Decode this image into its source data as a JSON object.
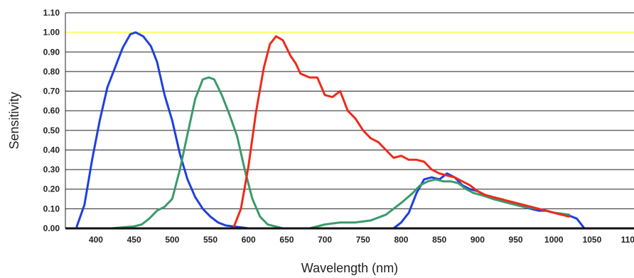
{
  "chart_data": {
    "type": "line",
    "title": "",
    "xlabel": "Wavelength (nm)",
    "ylabel": "Sensitivity",
    "xlim": [
      360,
      1105
    ],
    "ylim": [
      0,
      1.1
    ],
    "x_ticks": [
      "400",
      "450",
      "500",
      "550",
      "600",
      "650",
      "700",
      "750",
      "800",
      "850",
      "900",
      "950",
      "1000",
      "1050",
      "1100"
    ],
    "y_ticks": [
      "0.00",
      "0.10",
      "0.20",
      "0.30",
      "0.40",
      "0.50",
      "0.60",
      "0.70",
      "0.80",
      "0.90",
      "1.00",
      "1.10"
    ],
    "grid": true,
    "reference_line": {
      "y": 1.0,
      "color": "#ffff66"
    },
    "series": [
      {
        "color": "#1f3fe0",
        "points": [
          [
            375,
            0.01
          ],
          [
            385,
            0.12
          ],
          [
            395,
            0.35
          ],
          [
            405,
            0.55
          ],
          [
            415,
            0.72
          ],
          [
            425,
            0.82
          ],
          [
            435,
            0.92
          ],
          [
            445,
            0.99
          ],
          [
            452,
            1.0
          ],
          [
            462,
            0.98
          ],
          [
            472,
            0.93
          ],
          [
            480,
            0.85
          ],
          [
            490,
            0.68
          ],
          [
            500,
            0.55
          ],
          [
            510,
            0.38
          ],
          [
            520,
            0.25
          ],
          [
            530,
            0.16
          ],
          [
            540,
            0.1
          ],
          [
            550,
            0.06
          ],
          [
            560,
            0.03
          ],
          [
            570,
            0.015
          ],
          [
            580,
            0.01
          ],
          [
            590,
            0.005
          ],
          [
            600,
            0.0
          ],
          [
            700,
            0.0
          ],
          [
            790,
            0.0
          ],
          [
            800,
            0.03
          ],
          [
            810,
            0.08
          ],
          [
            820,
            0.18
          ],
          [
            830,
            0.25
          ],
          [
            840,
            0.26
          ],
          [
            850,
            0.25
          ],
          [
            860,
            0.28
          ],
          [
            870,
            0.26
          ],
          [
            880,
            0.22
          ],
          [
            890,
            0.2
          ],
          [
            900,
            0.19
          ],
          [
            910,
            0.17
          ],
          [
            920,
            0.16
          ],
          [
            930,
            0.14
          ],
          [
            940,
            0.13
          ],
          [
            950,
            0.12
          ],
          [
            960,
            0.11
          ],
          [
            970,
            0.1
          ],
          [
            980,
            0.09
          ],
          [
            990,
            0.09
          ],
          [
            1000,
            0.08
          ],
          [
            1010,
            0.07
          ],
          [
            1020,
            0.065
          ],
          [
            1030,
            0.05
          ],
          [
            1040,
            0.0
          ]
        ]
      },
      {
        "color": "#3a9a6a",
        "points": [
          [
            375,
            0.0
          ],
          [
            420,
            0.0
          ],
          [
            450,
            0.01
          ],
          [
            460,
            0.02
          ],
          [
            470,
            0.05
          ],
          [
            480,
            0.09
          ],
          [
            490,
            0.11
          ],
          [
            500,
            0.15
          ],
          [
            510,
            0.3
          ],
          [
            520,
            0.48
          ],
          [
            530,
            0.66
          ],
          [
            540,
            0.76
          ],
          [
            548,
            0.77
          ],
          [
            555,
            0.76
          ],
          [
            565,
            0.68
          ],
          [
            575,
            0.58
          ],
          [
            585,
            0.47
          ],
          [
            595,
            0.3
          ],
          [
            605,
            0.15
          ],
          [
            615,
            0.06
          ],
          [
            625,
            0.02
          ],
          [
            635,
            0.01
          ],
          [
            645,
            0.0
          ],
          [
            680,
            0.0
          ],
          [
            700,
            0.02
          ],
          [
            720,
            0.03
          ],
          [
            740,
            0.03
          ],
          [
            760,
            0.04
          ],
          [
            780,
            0.07
          ],
          [
            800,
            0.13
          ],
          [
            815,
            0.18
          ],
          [
            825,
            0.22
          ],
          [
            835,
            0.24
          ],
          [
            845,
            0.25
          ],
          [
            855,
            0.24
          ],
          [
            865,
            0.24
          ],
          [
            875,
            0.23
          ],
          [
            885,
            0.2
          ],
          [
            895,
            0.18
          ],
          [
            905,
            0.17
          ],
          [
            920,
            0.15
          ],
          [
            940,
            0.13
          ],
          [
            960,
            0.11
          ],
          [
            980,
            0.1
          ],
          [
            1000,
            0.08
          ],
          [
            1020,
            0.07
          ]
        ]
      },
      {
        "color": "#ee2a1a",
        "points": [
          [
            375,
            0.0
          ],
          [
            580,
            0.0
          ],
          [
            590,
            0.1
          ],
          [
            600,
            0.32
          ],
          [
            610,
            0.6
          ],
          [
            620,
            0.82
          ],
          [
            628,
            0.94
          ],
          [
            636,
            0.98
          ],
          [
            645,
            0.96
          ],
          [
            655,
            0.88
          ],
          [
            662,
            0.84
          ],
          [
            668,
            0.79
          ],
          [
            680,
            0.77
          ],
          [
            690,
            0.77
          ],
          [
            700,
            0.68
          ],
          [
            710,
            0.67
          ],
          [
            720,
            0.7
          ],
          [
            730,
            0.6
          ],
          [
            740,
            0.56
          ],
          [
            750,
            0.5
          ],
          [
            760,
            0.46
          ],
          [
            770,
            0.44
          ],
          [
            780,
            0.4
          ],
          [
            790,
            0.36
          ],
          [
            800,
            0.37
          ],
          [
            810,
            0.35
          ],
          [
            820,
            0.35
          ],
          [
            830,
            0.34
          ],
          [
            840,
            0.3
          ],
          [
            850,
            0.28
          ],
          [
            860,
            0.27
          ],
          [
            870,
            0.26
          ],
          [
            880,
            0.24
          ],
          [
            890,
            0.22
          ],
          [
            900,
            0.19
          ],
          [
            910,
            0.17
          ],
          [
            920,
            0.16
          ],
          [
            930,
            0.15
          ],
          [
            940,
            0.14
          ],
          [
            950,
            0.13
          ],
          [
            960,
            0.12
          ],
          [
            970,
            0.11
          ],
          [
            980,
            0.1
          ],
          [
            1000,
            0.08
          ],
          [
            1020,
            0.06
          ]
        ]
      }
    ]
  }
}
